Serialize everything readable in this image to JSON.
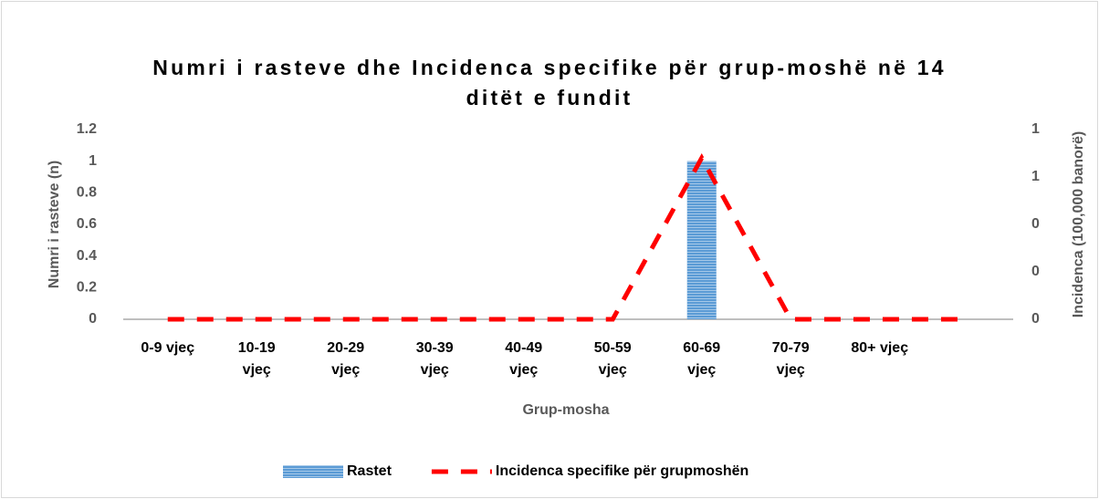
{
  "chart_data": {
    "type": "bar",
    "title": "Numri i rasteve dhe Incidenca specifike për grup-moshë në 14 ditët e fundit",
    "x_label": "Grup-mosha",
    "y_label": "Numri i rasteve (n)",
    "y2_label": "Incidenca (100,000 banorë)",
    "categories": [
      "0-9 vjeç",
      "10-19 vjeç",
      "20-29 vjeç",
      "30-39 vjeç",
      "40-49 vjeç",
      "50-59 vjeç",
      "60-69 vjeç",
      "70-79 vjeç",
      "80+ vjeç",
      null
    ],
    "series": [
      {
        "name": "Rastet",
        "type": "bar",
        "color": "#5b9bd5",
        "values": [
          0,
          0,
          0,
          0,
          0,
          0,
          1,
          0,
          0,
          0
        ]
      },
      {
        "name": "Incidenca specifike për grupmoshën",
        "type": "line",
        "axis": "y2",
        "color": "#ff0000",
        "values": [
          0,
          0,
          0,
          0,
          0,
          0,
          0.68,
          0,
          0,
          0
        ]
      }
    ],
    "ylim": [
      0,
      1.2
    ],
    "yticks": [
      0,
      0.2,
      0.4,
      0.6,
      0.8,
      1,
      1.2
    ],
    "y2lim": [
      0,
      0.8
    ],
    "y2ticks": [
      0,
      {
        "value": 0.2,
        "label": "0"
      },
      {
        "value": 0.4,
        "label": "0"
      },
      {
        "value": 0.6,
        "label": "1"
      },
      {
        "value": 0.8,
        "label": "1"
      }
    ],
    "legend": "bottom",
    "grid": false
  }
}
